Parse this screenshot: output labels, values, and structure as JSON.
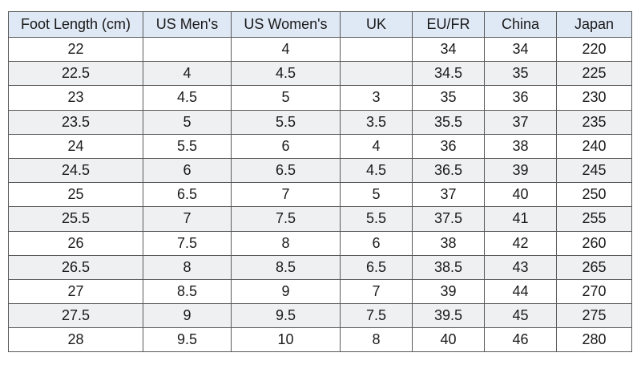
{
  "chart_data": {
    "type": "table",
    "columns": [
      "Foot Length (cm)",
      "US Men's",
      "US Women's",
      "UK",
      "EU/FR",
      "China",
      "Japan"
    ],
    "rows": [
      [
        "22",
        "",
        "4",
        "",
        "34",
        "34",
        "220"
      ],
      [
        "22.5",
        "4",
        "4.5",
        "",
        "34.5",
        "35",
        "225"
      ],
      [
        "23",
        "4.5",
        "5",
        "3",
        "35",
        "36",
        "230"
      ],
      [
        "23.5",
        "5",
        "5.5",
        "3.5",
        "35.5",
        "37",
        "235"
      ],
      [
        "24",
        "5.5",
        "6",
        "4",
        "36",
        "38",
        "240"
      ],
      [
        "24.5",
        "6",
        "6.5",
        "4.5",
        "36.5",
        "39",
        "245"
      ],
      [
        "25",
        "6.5",
        "7",
        "5",
        "37",
        "40",
        "250"
      ],
      [
        "25.5",
        "7",
        "7.5",
        "5.5",
        "37.5",
        "41",
        "255"
      ],
      [
        "26",
        "7.5",
        "8",
        "6",
        "38",
        "42",
        "260"
      ],
      [
        "26.5",
        "8",
        "8.5",
        "6.5",
        "38.5",
        "43",
        "265"
      ],
      [
        "27",
        "8.5",
        "9",
        "7",
        "39",
        "44",
        "270"
      ],
      [
        "27.5",
        "9",
        "9.5",
        "7.5",
        "39.5",
        "45",
        "275"
      ],
      [
        "28",
        "9.5",
        "10",
        "8",
        "40",
        "46",
        "280"
      ]
    ]
  },
  "colors": {
    "header_bg": "#dfe8f5",
    "stripe_bg": "#eef0f2",
    "border": "#5a5a5a"
  }
}
